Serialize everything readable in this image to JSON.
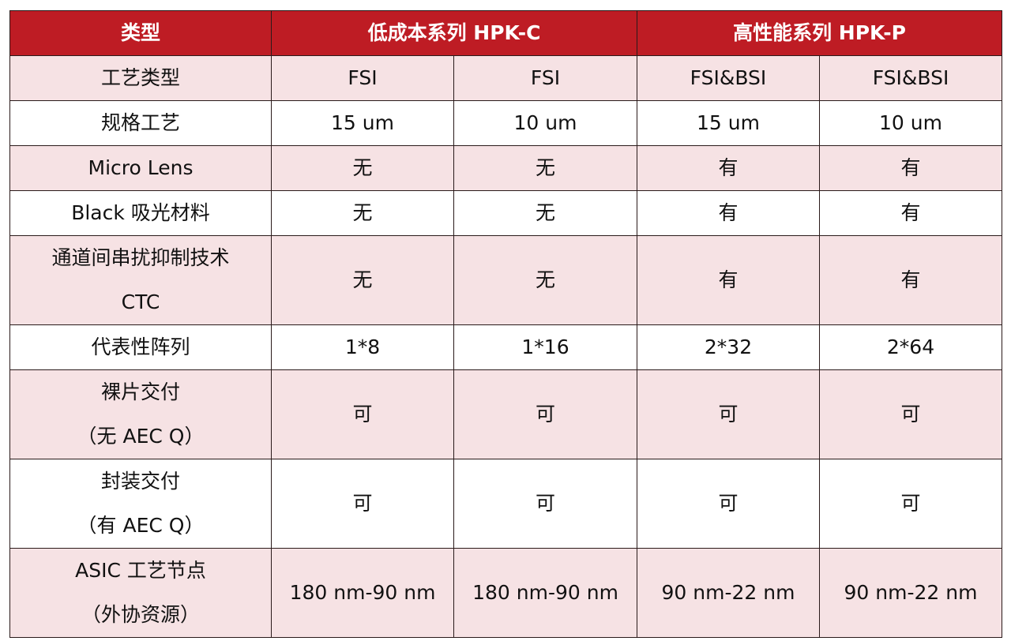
{
  "colors": {
    "header": "#be1c24",
    "pink_row": "#f6e2e4"
  },
  "header": [
    "类型",
    "低成本系列 HPK-C",
    "高性能系列 HPK-P"
  ],
  "rows": [
    {
      "label": [
        "工艺类型"
      ],
      "values": [
        "FSI",
        "FSI",
        "FSI&BSI",
        "FSI&BSI"
      ]
    },
    {
      "label": [
        "规格工艺"
      ],
      "values": [
        "15 um",
        "10 um",
        "15 um",
        "10 um"
      ]
    },
    {
      "label": [
        "Micro Lens"
      ],
      "values": [
        "无",
        "无",
        "有",
        "有"
      ]
    },
    {
      "label": [
        "Black 吸光材料"
      ],
      "values": [
        "无",
        "无",
        "有",
        "有"
      ]
    },
    {
      "label": [
        "通道间串扰抑制技术",
        "CTC"
      ],
      "values": [
        "无",
        "无",
        "有",
        "有"
      ]
    },
    {
      "label": [
        "代表性阵列"
      ],
      "values": [
        "1*8",
        "1*16",
        "2*32",
        "2*64"
      ]
    },
    {
      "label": [
        "裸片交付",
        "（无 AEC Q）"
      ],
      "values": [
        "可",
        "可",
        "可",
        "可"
      ]
    },
    {
      "label": [
        "封装交付",
        "（有 AEC Q）"
      ],
      "values": [
        "可",
        "可",
        "可",
        "可"
      ]
    },
    {
      "label": [
        "ASIC 工艺节点",
        "（外协资源）"
      ],
      "values": [
        "180 nm-90 nm",
        "180 nm-90 nm",
        "90 nm-22 nm",
        "90 nm-22 nm"
      ]
    }
  ]
}
